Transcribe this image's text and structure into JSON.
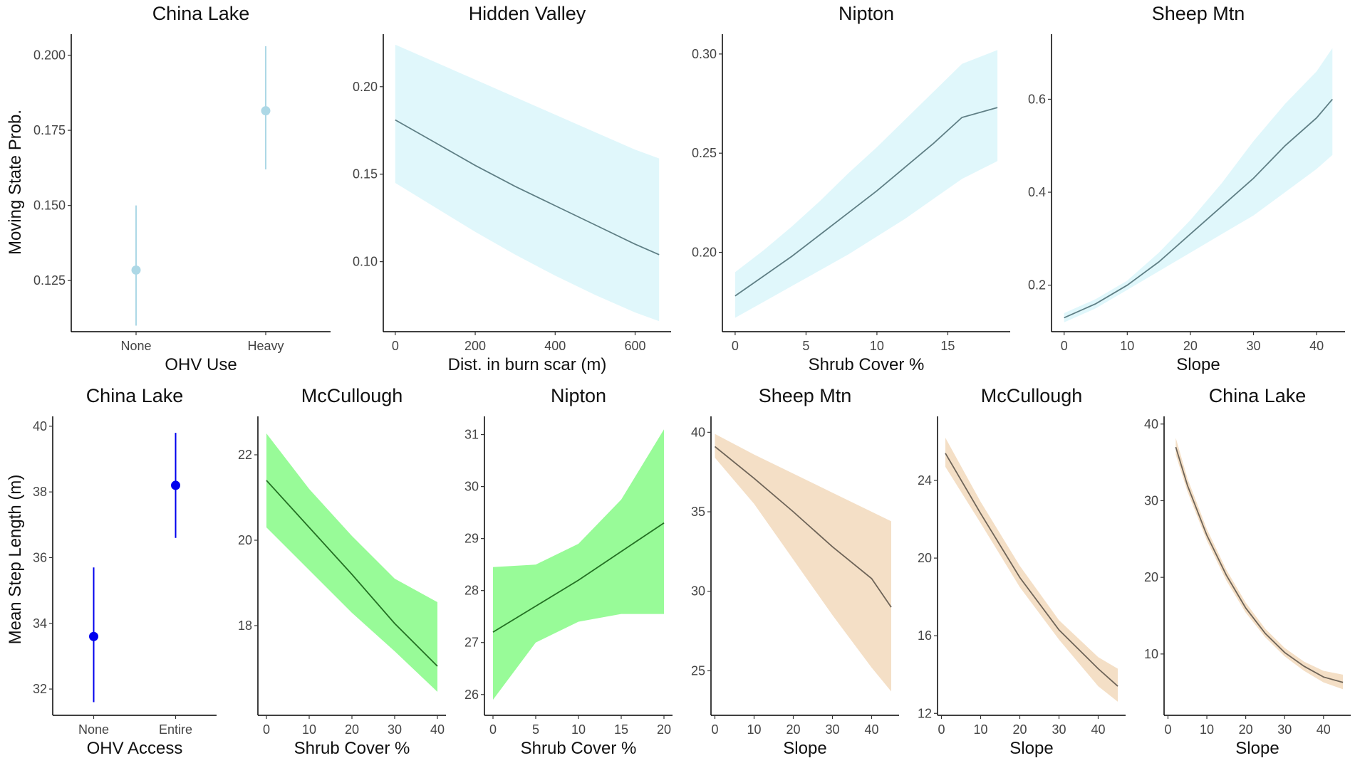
{
  "figure": {
    "y_label_top": "Moving State Prob.",
    "y_label_bottom": "Mean Step Length (m)"
  },
  "chart_data": [
    {
      "type": "pointrange",
      "title": "China Lake",
      "xlabel": "OHV Use",
      "categories": [
        "None",
        "Heavy"
      ],
      "values": [
        0.1285,
        0.1815
      ],
      "lower": [
        0.11,
        0.162
      ],
      "upper": [
        0.15,
        0.203
      ],
      "ylim": [
        0.108,
        0.207
      ],
      "yticks": [
        0.125,
        0.15,
        0.175,
        0.2
      ],
      "ytick_labels": [
        "0.125",
        "0.150",
        "0.175",
        "0.200"
      ],
      "color": "#add8e6",
      "band_color": "#add8e6"
    },
    {
      "type": "line",
      "title": "Hidden Valley",
      "xlabel": "Dist. in burn scar (m)",
      "x": [
        0,
        100,
        200,
        300,
        400,
        500,
        600,
        660
      ],
      "y": [
        0.181,
        0.168,
        0.155,
        0.143,
        0.132,
        0.121,
        0.11,
        0.104
      ],
      "lower": [
        0.145,
        0.131,
        0.117,
        0.104,
        0.092,
        0.081,
        0.071,
        0.066
      ],
      "upper": [
        0.224,
        0.214,
        0.204,
        0.194,
        0.184,
        0.174,
        0.164,
        0.159
      ],
      "xlim": [
        -30,
        690
      ],
      "ylim": [
        0.06,
        0.23
      ],
      "xticks": [
        0,
        200,
        400,
        600
      ],
      "xtick_labels": [
        "0",
        "200",
        "400",
        "600"
      ],
      "yticks": [
        0.1,
        0.15,
        0.2
      ],
      "ytick_labels": [
        "0.10",
        "0.15",
        "0.20"
      ],
      "line_color": "#5f7f85",
      "band_color": "#e0f7fb"
    },
    {
      "type": "line",
      "title": "Nipton",
      "xlabel": "Shrub Cover %",
      "x": [
        0,
        2,
        4,
        6,
        8,
        10,
        12,
        14,
        16,
        18.5
      ],
      "y": [
        0.178,
        0.188,
        0.198,
        0.209,
        0.22,
        0.231,
        0.243,
        0.255,
        0.268,
        0.273
      ],
      "lower": [
        0.167,
        0.175,
        0.183,
        0.191,
        0.199,
        0.208,
        0.217,
        0.227,
        0.237,
        0.246
      ],
      "upper": [
        0.19,
        0.201,
        0.213,
        0.226,
        0.24,
        0.253,
        0.267,
        0.281,
        0.295,
        0.302
      ],
      "xlim": [
        -0.9,
        19.4
      ],
      "ylim": [
        0.16,
        0.31
      ],
      "xticks": [
        0,
        5,
        10,
        15
      ],
      "xtick_labels": [
        "0",
        "5",
        "10",
        "15"
      ],
      "yticks": [
        0.2,
        0.25,
        0.3
      ],
      "ytick_labels": [
        "0.20",
        "0.25",
        "0.30"
      ],
      "line_color": "#5f7f85",
      "band_color": "#e0f7fb"
    },
    {
      "type": "line",
      "title": "Sheep Mtn",
      "xlabel": "Slope",
      "x": [
        0,
        5,
        10,
        15,
        20,
        25,
        30,
        35,
        40,
        42.5
      ],
      "y": [
        0.13,
        0.16,
        0.2,
        0.25,
        0.31,
        0.37,
        0.43,
        0.5,
        0.56,
        0.6
      ],
      "lower": [
        0.12,
        0.15,
        0.19,
        0.23,
        0.27,
        0.31,
        0.35,
        0.4,
        0.45,
        0.48
      ],
      "upper": [
        0.14,
        0.17,
        0.21,
        0.27,
        0.34,
        0.42,
        0.51,
        0.59,
        0.66,
        0.71
      ],
      "xlim": [
        -2,
        44.5
      ],
      "ylim": [
        0.1,
        0.74
      ],
      "xticks": [
        0,
        10,
        20,
        30,
        40
      ],
      "xtick_labels": [
        "0",
        "10",
        "20",
        "30",
        "40"
      ],
      "yticks": [
        0.2,
        0.4,
        0.6
      ],
      "ytick_labels": [
        "0.2",
        "0.4",
        "0.6"
      ],
      "line_color": "#5f7f85",
      "band_color": "#e0f7fb"
    },
    {
      "type": "pointrange",
      "title": "China Lake",
      "xlabel": "OHV Access",
      "categories": [
        "None",
        "Entire"
      ],
      "values": [
        33.6,
        38.2
      ],
      "lower": [
        31.6,
        36.6
      ],
      "upper": [
        35.7,
        39.8
      ],
      "ylim": [
        31.2,
        40.3
      ],
      "yticks": [
        32,
        34,
        36,
        38,
        40
      ],
      "ytick_labels": [
        "32",
        "34",
        "36",
        "38",
        "40"
      ],
      "color": "#0000ee",
      "band_color": "#0000ee"
    },
    {
      "type": "line",
      "title": "McCullough",
      "xlabel": "Shrub Cover %",
      "x": [
        0,
        10,
        20,
        30,
        40
      ],
      "y": [
        21.4,
        20.3,
        19.2,
        18.05,
        17.05
      ],
      "lower": [
        20.3,
        19.3,
        18.3,
        17.4,
        16.45
      ],
      "upper": [
        22.5,
        21.2,
        20.1,
        19.1,
        18.55
      ],
      "xlim": [
        -2,
        42
      ],
      "ylim": [
        15.9,
        22.9
      ],
      "xticks": [
        0,
        10,
        20,
        30,
        40
      ],
      "xtick_labels": [
        "0",
        "10",
        "20",
        "30",
        "40"
      ],
      "yticks": [
        18,
        20,
        22
      ],
      "ytick_labels": [
        "18",
        "20",
        "22"
      ],
      "line_color": "#237023",
      "band_color": "#98fb98"
    },
    {
      "type": "line",
      "title": "Nipton",
      "xlabel": "Shrub Cover %",
      "x": [
        0,
        5,
        10,
        15,
        20
      ],
      "y": [
        27.2,
        27.7,
        28.2,
        28.75,
        29.3
      ],
      "lower": [
        25.9,
        27.0,
        27.4,
        27.55,
        27.55
      ],
      "upper": [
        28.45,
        28.5,
        28.9,
        29.75,
        31.1
      ],
      "xlim": [
        -1,
        21
      ],
      "ylim": [
        25.6,
        31.35
      ],
      "xticks": [
        0,
        5,
        10,
        15,
        20
      ],
      "xtick_labels": [
        "0",
        "5",
        "10",
        "15",
        "20"
      ],
      "yticks": [
        26,
        27,
        28,
        29,
        30,
        31
      ],
      "ytick_labels": [
        "26",
        "27",
        "28",
        "29",
        "30",
        "31"
      ],
      "line_color": "#237023",
      "band_color": "#98fb98"
    },
    {
      "type": "line",
      "title": "Sheep Mtn",
      "xlabel": "Slope",
      "x": [
        0,
        10,
        20,
        30,
        40,
        45
      ],
      "y": [
        39.1,
        37.1,
        35.0,
        32.8,
        30.8,
        29.0
      ],
      "lower": [
        38.4,
        35.5,
        32.0,
        28.5,
        25.2,
        23.7
      ],
      "upper": [
        39.9,
        38.6,
        37.4,
        36.2,
        35.0,
        34.4
      ],
      "xlim": [
        -1,
        47
      ],
      "ylim": [
        22.2,
        41.0
      ],
      "xticks": [
        0,
        10,
        20,
        30,
        40
      ],
      "xtick_labels": [
        "0",
        "10",
        "20",
        "30",
        "40"
      ],
      "yticks": [
        25,
        30,
        35,
        40
      ],
      "ytick_labels": [
        "25",
        "30",
        "35",
        "40"
      ],
      "line_color": "#6e6458",
      "band_color": "#f4dfc6"
    },
    {
      "type": "line",
      "title": "McCullough",
      "xlabel": "Slope",
      "x": [
        1,
        10,
        20,
        30,
        40,
        45
      ],
      "y": [
        25.4,
        22.3,
        19.0,
        16.3,
        14.3,
        13.4
      ],
      "lower": [
        24.7,
        21.8,
        18.5,
        15.8,
        13.4,
        12.6
      ],
      "upper": [
        26.2,
        22.9,
        19.6,
        16.8,
        14.9,
        14.3
      ],
      "xlim": [
        -1,
        47
      ],
      "ylim": [
        11.9,
        27.3
      ],
      "xticks": [
        0,
        10,
        20,
        30,
        40
      ],
      "xtick_labels": [
        "0",
        "10",
        "20",
        "30",
        "40"
      ],
      "yticks": [
        12,
        16,
        20,
        24
      ],
      "ytick_labels": [
        "12",
        "16",
        "20",
        "24"
      ],
      "line_color": "#6e6458",
      "band_color": "#f4dfc6"
    },
    {
      "type": "line",
      "title": "China Lake",
      "xlabel": "Slope",
      "x": [
        2,
        5,
        10,
        15,
        20,
        25,
        30,
        35,
        40,
        45
      ],
      "y": [
        37.0,
        32.0,
        25.5,
        20.3,
        16.0,
        12.7,
        10.2,
        8.4,
        7.0,
        6.3
      ],
      "lower": [
        36.0,
        31.2,
        24.8,
        19.6,
        15.4,
        12.2,
        9.7,
        7.8,
        6.3,
        5.4
      ],
      "upper": [
        38.2,
        32.9,
        26.3,
        21.0,
        16.7,
        13.3,
        10.8,
        9.0,
        7.8,
        7.3
      ],
      "xlim": [
        -1,
        47
      ],
      "ylim": [
        2.0,
        41.0
      ],
      "xticks": [
        0,
        10,
        20,
        30,
        40
      ],
      "xtick_labels": [
        "0",
        "10",
        "20",
        "30",
        "40"
      ],
      "yticks": [
        10,
        20,
        30,
        40
      ],
      "ytick_labels": [
        "10",
        "20",
        "30",
        "40"
      ],
      "line_color": "#6e6458",
      "band_color": "#f4dfc6"
    }
  ]
}
